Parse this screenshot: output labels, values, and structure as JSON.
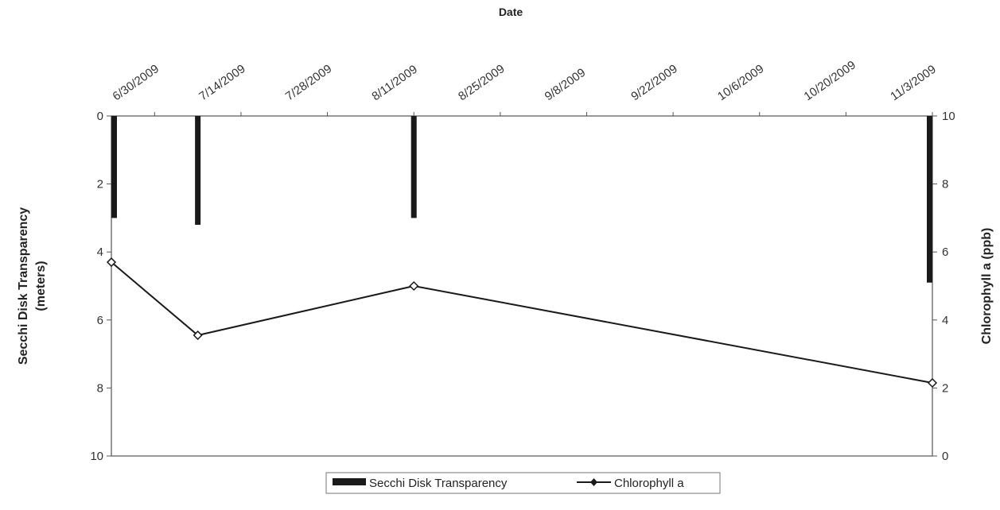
{
  "chart_data": {
    "type": "bar+line",
    "title": "",
    "xlabel": "Date",
    "ylabel_left": [
      "Secchi Disk Transparency",
      "(meters)"
    ],
    "ylabel_right": "Chlorophyll a (ppb)",
    "x_tick_labels": [
      "6/30/2009",
      "7/14/2009",
      "7/28/2009",
      "8/11/2009",
      "8/25/2009",
      "9/8/2009",
      "9/22/2009",
      "10/6/2009",
      "10/20/2009",
      "11/3/2009"
    ],
    "xlim": [
      "2009-06-23",
      "2009-11-03"
    ],
    "left_axis": {
      "range": [
        0,
        10
      ],
      "inverted": true,
      "ticks": [
        "0",
        "2",
        "4",
        "6",
        "8",
        "10"
      ]
    },
    "right_axis": {
      "range": [
        0,
        10
      ],
      "ticks": [
        "0",
        "2",
        "4",
        "6",
        "8",
        "10"
      ]
    },
    "series": [
      {
        "name": "Secchi Disk Transparency",
        "type": "bar",
        "axis": "left",
        "color": "#1a1a1a",
        "points": [
          {
            "x": "2009-06-23",
            "y": 3.0
          },
          {
            "x": "2009-07-07",
            "y": 3.2
          },
          {
            "x": "2009-08-11",
            "y": 3.0
          },
          {
            "x": "2009-11-03",
            "y": 4.9
          }
        ]
      },
      {
        "name": "Chlorophyll a",
        "type": "line",
        "axis": "right",
        "color": "#1a1a1a",
        "marker": "diamond",
        "points": [
          {
            "x": "2009-06-23",
            "y": 5.7
          },
          {
            "x": "2009-07-07",
            "y": 3.55
          },
          {
            "x": "2009-08-11",
            "y": 5.0
          },
          {
            "x": "2009-11-03",
            "y": 2.15
          }
        ]
      }
    ],
    "legend": {
      "position": "bottom",
      "items": [
        "Secchi Disk Transparency",
        "Chlorophyll a"
      ]
    },
    "grid": false
  }
}
